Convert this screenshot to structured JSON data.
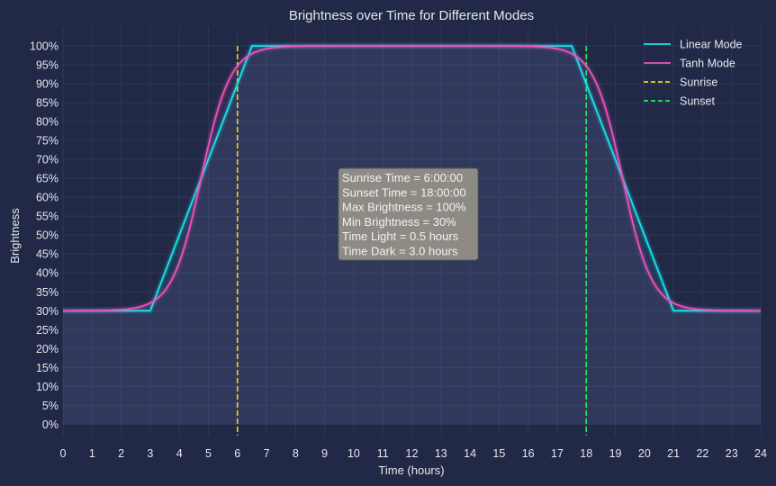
{
  "chart_data": {
    "type": "line",
    "title": "Brightness over Time for Different Modes",
    "xlabel": "Time (hours)",
    "ylabel": "Brightness",
    "xlim": [
      0,
      24
    ],
    "ylim": [
      -3,
      105
    ],
    "x_ticks": [
      0,
      1,
      2,
      3,
      4,
      5,
      6,
      7,
      8,
      9,
      10,
      11,
      12,
      13,
      14,
      15,
      16,
      17,
      18,
      19,
      20,
      21,
      22,
      23,
      24
    ],
    "y_ticks": [
      0,
      5,
      10,
      15,
      20,
      25,
      30,
      35,
      40,
      45,
      50,
      55,
      60,
      65,
      70,
      75,
      80,
      85,
      90,
      95,
      100
    ],
    "y_tick_labels": [
      "0%",
      "5%",
      "10%",
      "15%",
      "20%",
      "25%",
      "30%",
      "35%",
      "40%",
      "45%",
      "50%",
      "55%",
      "60%",
      "65%",
      "70%",
      "75%",
      "80%",
      "85%",
      "90%",
      "95%",
      "100%"
    ],
    "grid": true,
    "legend_position": "top-right",
    "series": [
      {
        "name": "Linear Mode",
        "color": "#18e6f2",
        "style": "solid",
        "x": [
          0,
          3,
          6.5,
          17.5,
          21,
          24
        ],
        "y": [
          30,
          30,
          100,
          100,
          30,
          30
        ]
      },
      {
        "name": "Tanh Mode",
        "color": "#f052bd",
        "style": "solid",
        "function": "30 + 35*(tanh(x-4.75) - tanh(x-19.25))",
        "x_range": [
          0,
          24
        ]
      }
    ],
    "vlines": [
      {
        "name": "Sunrise",
        "x": 6,
        "color": "#f5d21a",
        "style": "dashed"
      },
      {
        "name": "Sunset",
        "x": 18,
        "color": "#1aef5a",
        "style": "dashed"
      }
    ],
    "annotation": [
      "Sunrise Time = 6:00:00",
      "Sunset Time = 18:00:00",
      "Max Brightness = 100%",
      "Min Brightness = 30%",
      "Time Light = 0.5 hours",
      "Time Dark = 3.0 hours"
    ]
  }
}
